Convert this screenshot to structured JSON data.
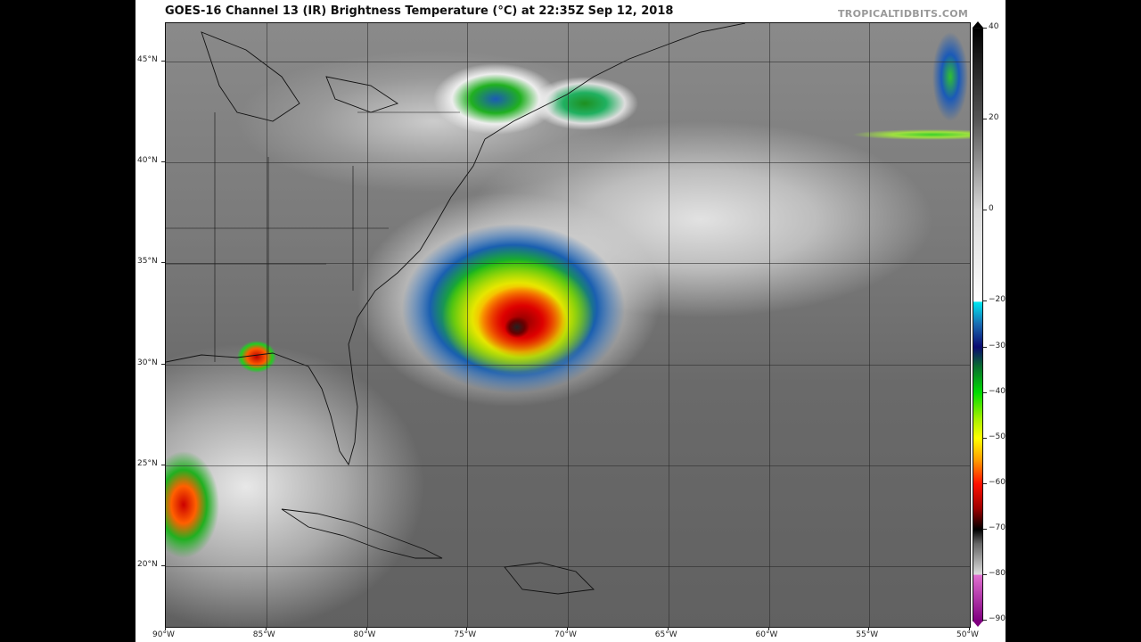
{
  "title": "GOES-16 Channel 13 (IR) Brightness Temperature (°C) at 22:35Z Sep 12, 2018",
  "watermark": "TROPICALTIDBITS.COM",
  "map": {
    "lon_labels": [
      "90°W",
      "85°W",
      "80°W",
      "75°W",
      "70°W",
      "65°W",
      "60°W",
      "55°W",
      "50°W"
    ],
    "lat_labels": [
      "45°N",
      "40°N",
      "35°N",
      "30°N",
      "25°N",
      "20°N"
    ],
    "lon_range": [
      -90,
      -50
    ],
    "lat_range": [
      17,
      46.9
    ]
  },
  "colorbar": {
    "unit": "°C",
    "range": [
      -90,
      40
    ],
    "ticks": [
      "40",
      "20",
      "0",
      "−20",
      "−30",
      "−40",
      "−50",
      "−60",
      "−70",
      "−80",
      "−90"
    ],
    "tick_values": [
      40,
      20,
      0,
      -20,
      -30,
      -40,
      -50,
      -60,
      -70,
      -80,
      -90
    ],
    "colors": {
      "warm": "#000000",
      "cold_cyan": "#00e8f0",
      "blue": "#0a0a70",
      "green": "#00dd00",
      "yellow": "#ffff00",
      "red": "#ff1000",
      "pink": "#e070d0",
      "purple": "#800080"
    }
  }
}
